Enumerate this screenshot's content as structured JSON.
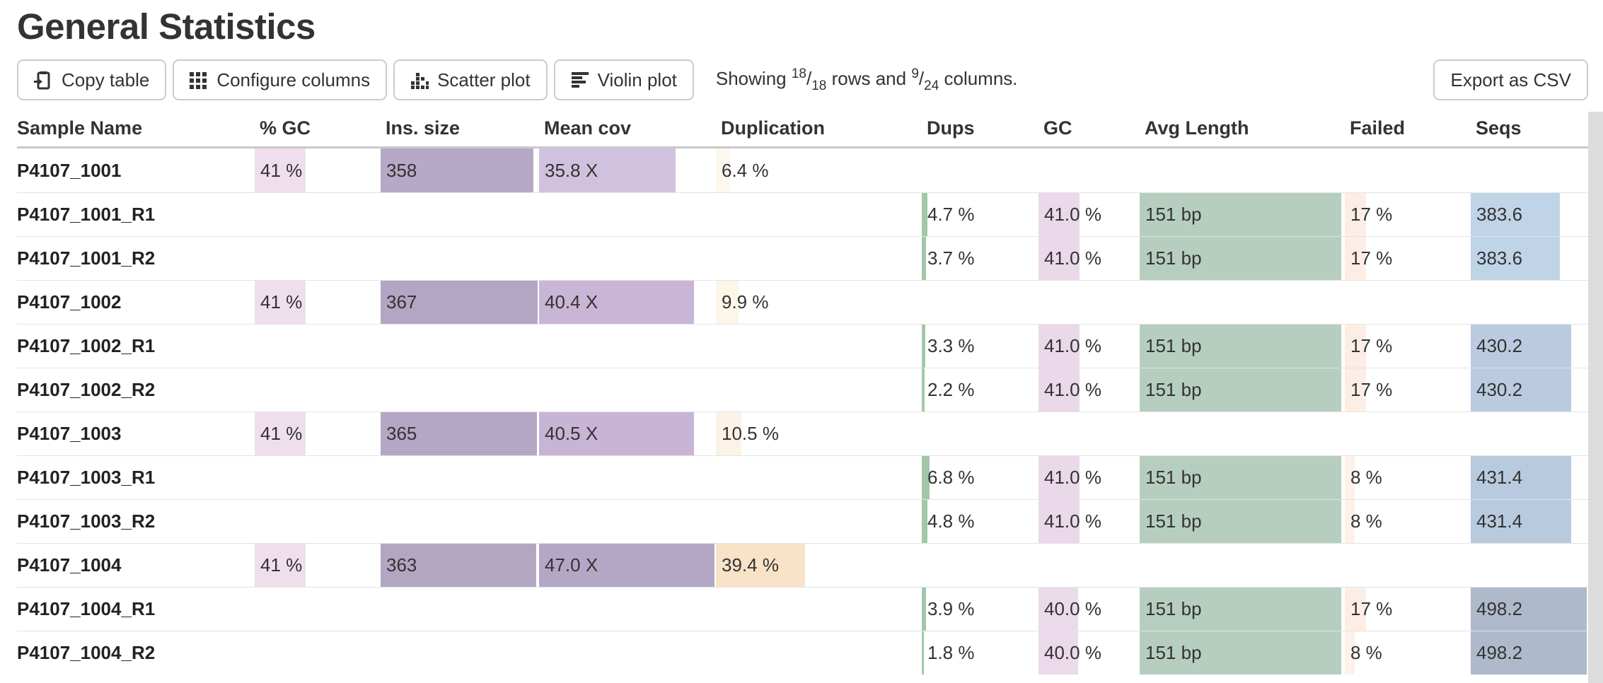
{
  "page": {
    "title": "General Statistics"
  },
  "toolbar": {
    "buttons": [
      {
        "label": "Copy table",
        "icon": "clipboard-icon"
      },
      {
        "label": "Configure columns",
        "icon": "grid-icon"
      },
      {
        "label": "Scatter plot",
        "icon": "scatter-dots-icon"
      },
      {
        "label": "Violin plot",
        "icon": "violin-bars-icon"
      }
    ],
    "showing": {
      "prefix": "Showing ",
      "rows_shown": "18",
      "rows_slash": "/",
      "rows_total": "18",
      "mid": " rows and ",
      "cols_shown": "9",
      "cols_slash": "/",
      "cols_total": "24",
      "suffix": " columns."
    },
    "export_label": "Export as CSV"
  },
  "table": {
    "columns": [
      {
        "key": "sample",
        "label": "Sample Name"
      },
      {
        "key": "pct_gc",
        "label": "% GC"
      },
      {
        "key": "ins_size",
        "label": "Ins. size"
      },
      {
        "key": "mean_cov",
        "label": "Mean cov"
      },
      {
        "key": "duplication",
        "label": "Duplication"
      },
      {
        "key": "dups",
        "label": "Dups"
      },
      {
        "key": "gc",
        "label": "GC"
      },
      {
        "key": "avg_length",
        "label": "Avg Length"
      },
      {
        "key": "failed",
        "label": "Failed"
      },
      {
        "key": "seqs",
        "label": "Seqs"
      }
    ],
    "rows": [
      {
        "sample": "P4107_1001",
        "cells": {
          "pct_gc": {
            "text": "41 %",
            "bar": 41,
            "color": "#efdfed"
          },
          "ins_size": {
            "text": "358",
            "bar": 97.5,
            "color": "#b6a9c7"
          },
          "mean_cov": {
            "text": "35.8 X",
            "bar": 78,
            "color": "#d0c2de"
          },
          "duplication": {
            "text": "6.4 %",
            "bar": 7,
            "color": "#fdf8ee"
          }
        }
      },
      {
        "sample": "P4107_1001_R1",
        "cells": {
          "dups": {
            "text": "4.7 %",
            "bar": 4.7,
            "color": "#a3c7a8"
          },
          "gc": {
            "text": "41.0 %",
            "bar": 41,
            "color": "#ead9e9"
          },
          "avg_length": {
            "text": "151 bp",
            "bar": 99,
            "color": "#b6cebf"
          },
          "failed": {
            "text": "17 %",
            "bar": 17,
            "color": "#fceee5"
          },
          "seqs": {
            "text": "383.6",
            "bar": 77,
            "color": "#c0d4e8"
          }
        }
      },
      {
        "sample": "P4107_1001_R2",
        "cells": {
          "dups": {
            "text": "3.7 %",
            "bar": 3.7,
            "color": "#a3c7a8"
          },
          "gc": {
            "text": "41.0 %",
            "bar": 41,
            "color": "#ead9e9"
          },
          "avg_length": {
            "text": "151 bp",
            "bar": 99,
            "color": "#b6cebf"
          },
          "failed": {
            "text": "17 %",
            "bar": 17,
            "color": "#fceee5"
          },
          "seqs": {
            "text": "383.6",
            "bar": 77,
            "color": "#c0d4e8"
          }
        }
      },
      {
        "sample": "P4107_1002",
        "cells": {
          "pct_gc": {
            "text": "41 %",
            "bar": 41,
            "color": "#efdfed"
          },
          "ins_size": {
            "text": "367",
            "bar": 100,
            "color": "#b3a6c4"
          },
          "mean_cov": {
            "text": "40.4 X",
            "bar": 88.5,
            "color": "#c9b5d6"
          },
          "duplication": {
            "text": "9.9 %",
            "bar": 11,
            "color": "#fcf5e8"
          }
        }
      },
      {
        "sample": "P4107_1002_R1",
        "cells": {
          "dups": {
            "text": "3.3 %",
            "bar": 3.3,
            "color": "#a3c7a8"
          },
          "gc": {
            "text": "41.0 %",
            "bar": 41,
            "color": "#ead9e9"
          },
          "avg_length": {
            "text": "151 bp",
            "bar": 99,
            "color": "#b6cebf"
          },
          "failed": {
            "text": "17 %",
            "bar": 17,
            "color": "#fceee5"
          },
          "seqs": {
            "text": "430.2",
            "bar": 86.3,
            "color": "#bacbe0"
          }
        }
      },
      {
        "sample": "P4107_1002_R2",
        "cells": {
          "dups": {
            "text": "2.2 %",
            "bar": 2.2,
            "color": "#a3c7a8"
          },
          "gc": {
            "text": "41.0 %",
            "bar": 41,
            "color": "#ead9e9"
          },
          "avg_length": {
            "text": "151 bp",
            "bar": 99,
            "color": "#b6cebf"
          },
          "failed": {
            "text": "17 %",
            "bar": 17,
            "color": "#fceee5"
          },
          "seqs": {
            "text": "430.2",
            "bar": 86.3,
            "color": "#bacbe0"
          }
        }
      },
      {
        "sample": "P4107_1003",
        "cells": {
          "pct_gc": {
            "text": "41 %",
            "bar": 41,
            "color": "#efdfed"
          },
          "ins_size": {
            "text": "365",
            "bar": 99.5,
            "color": "#b4a7c5"
          },
          "mean_cov": {
            "text": "40.5 X",
            "bar": 88.5,
            "color": "#c8b4d5"
          },
          "duplication": {
            "text": "10.5 %",
            "bar": 12.5,
            "color": "#fcf3e6"
          }
        }
      },
      {
        "sample": "P4107_1003_R1",
        "cells": {
          "dups": {
            "text": "6.8 %",
            "bar": 6.8,
            "color": "#a3c7a8"
          },
          "gc": {
            "text": "41.0 %",
            "bar": 41,
            "color": "#ead9e9"
          },
          "avg_length": {
            "text": "151 bp",
            "bar": 99,
            "color": "#b6cebf"
          },
          "failed": {
            "text": "8 %",
            "bar": 8,
            "color": "#fdf1ea"
          },
          "seqs": {
            "text": "431.4",
            "bar": 86.6,
            "color": "#b8cade"
          }
        }
      },
      {
        "sample": "P4107_1003_R2",
        "cells": {
          "dups": {
            "text": "4.8 %",
            "bar": 4.8,
            "color": "#a3c7a8"
          },
          "gc": {
            "text": "41.0 %",
            "bar": 41,
            "color": "#ead9e9"
          },
          "avg_length": {
            "text": "151 bp",
            "bar": 99,
            "color": "#b6cebf"
          },
          "failed": {
            "text": "8 %",
            "bar": 8,
            "color": "#fdf1ea"
          },
          "seqs": {
            "text": "431.4",
            "bar": 86.6,
            "color": "#b8cade"
          }
        }
      },
      {
        "sample": "P4107_1004",
        "cells": {
          "pct_gc": {
            "text": "41 %",
            "bar": 41,
            "color": "#efdfed"
          },
          "ins_size": {
            "text": "363",
            "bar": 99,
            "color": "#b3a6c3"
          },
          "mean_cov": {
            "text": "47.0 X",
            "bar": 100,
            "color": "#b4a7c5"
          },
          "duplication": {
            "text": "39.4 %",
            "bar": 43.5,
            "color": "#f8e3c8"
          }
        }
      },
      {
        "sample": "P4107_1004_R1",
        "cells": {
          "dups": {
            "text": "3.9 %",
            "bar": 3.9,
            "color": "#a3c7a8"
          },
          "gc": {
            "text": "40.0 %",
            "bar": 40,
            "color": "#ebdaea"
          },
          "avg_length": {
            "text": "151 bp",
            "bar": 99,
            "color": "#b6cebf"
          },
          "failed": {
            "text": "17 %",
            "bar": 17,
            "color": "#fceee5"
          },
          "seqs": {
            "text": "498.2",
            "bar": 100,
            "color": "#aebacc"
          }
        }
      },
      {
        "sample": "P4107_1004_R2",
        "cells": {
          "dups": {
            "text": "1.8 %",
            "bar": 1.8,
            "color": "#a3c7a8"
          },
          "gc": {
            "text": "40.0 %",
            "bar": 40,
            "color": "#ebdaea"
          },
          "avg_length": {
            "text": "151 bp",
            "bar": 99,
            "color": "#b6cebf"
          },
          "failed": {
            "text": "8 %",
            "bar": 8,
            "color": "#fdf1ea"
          },
          "seqs": {
            "text": "498.2",
            "bar": 100,
            "color": "#aebacc"
          }
        }
      }
    ]
  }
}
